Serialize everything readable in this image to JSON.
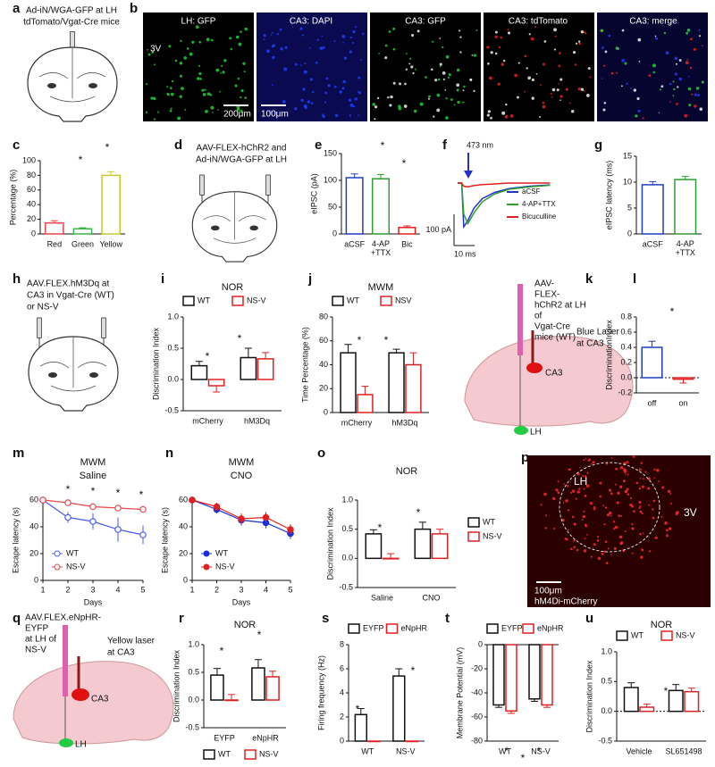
{
  "panels": {
    "a": {
      "letter": "a",
      "lines": [
        "Ad-iN/WGA-GFP at LH",
        "tdTomato/Vgat-Cre mice"
      ]
    },
    "b": {
      "letter": "b",
      "titles": [
        "LH: GFP",
        "CA3: DAPI",
        "CA3: GFP",
        "CA3: tdTomato",
        "CA3: merge"
      ],
      "marks": [
        "3V",
        "200μm",
        "100μm"
      ]
    },
    "d": {
      "letter": "d",
      "lines": [
        "AAV-FLEX-hChR2 and",
        "Ad-iN/WGA-GFP at LH"
      ]
    },
    "h": {
      "letter": "h",
      "lines": [
        "AAV.FLEX.hM3Dq at",
        "CA3 in Vgat-Cre (WT)",
        "or NS-V"
      ]
    },
    "k": {
      "letter": "k",
      "lines": [
        "AAV-",
        "FLEX-",
        "hChR2 at LH",
        "of",
        "Vgat-Cre",
        "mice (WT)"
      ],
      "laser": [
        "Blue Laser",
        "at CA3"
      ],
      "regions": [
        "CA3",
        "LH"
      ]
    },
    "p": {
      "letter": "p",
      "marks": [
        "LH",
        "3V",
        "100μm",
        "hM4Di-mCherry"
      ]
    },
    "q": {
      "letter": "q",
      "lines": [
        "AAV.FLEX.eNpHR-",
        "EYFP",
        "at LH of",
        "NS-V"
      ],
      "laser": [
        "Yellow laser",
        "at CA3"
      ],
      "regions": [
        "CA3",
        "LH"
      ]
    }
  },
  "chart_data": [
    {
      "type": "bar",
      "panel": "c",
      "ylabel": "Percentage (%)",
      "categories": [
        "Red",
        "Green",
        "Yellow"
      ],
      "ylim": [
        0,
        100
      ],
      "yticks": [
        0,
        20,
        40,
        60,
        80,
        100
      ],
      "series": [
        {
          "values": [
            15,
            7,
            80
          ],
          "errors": [
            3,
            1.5,
            5
          ],
          "colors": [
            "#e8474b",
            "#3cb44b",
            "#c8c832"
          ]
        }
      ],
      "annotations": [
        "*",
        "*"
      ]
    },
    {
      "type": "bar",
      "panel": "e",
      "ylabel": "eIPSC (pA)",
      "categories": [
        "aCSF",
        "4-AP\n+TTX",
        "Bic"
      ],
      "ylim": [
        0,
        150
      ],
      "yticks": [
        0,
        50,
        100,
        150
      ],
      "series": [
        {
          "values": [
            105,
            103,
            12
          ],
          "errors": [
            7,
            8,
            3
          ],
          "colors": [
            "#1f3fbf",
            "#2e9e2e",
            "#e02020"
          ]
        }
      ],
      "annotations": [
        "*",
        "*"
      ]
    },
    {
      "type": "trace",
      "panel": "f",
      "annotations": [
        "473 nm"
      ],
      "scale_labels": [
        "100 pA",
        "10 ms"
      ],
      "x": [
        0,
        2,
        3,
        5,
        8,
        12,
        18,
        25,
        35,
        45
      ],
      "series": [
        {
          "name": "aCSF",
          "color": "#2233cc",
          "values": [
            0,
            0,
            -140,
            -120,
            -80,
            -50,
            -30,
            -18,
            -10,
            -6
          ]
        },
        {
          "name": "4-AP+TTX",
          "color": "#2e9e2e",
          "values": [
            0,
            0,
            -100,
            -130,
            -95,
            -60,
            -35,
            -20,
            -12,
            -7
          ]
        },
        {
          "name": "Bicuculline",
          "color": "#e02020",
          "values": [
            0,
            0,
            -10,
            -12,
            -8,
            -5,
            -3,
            0,
            0,
            0
          ]
        }
      ]
    },
    {
      "type": "bar",
      "panel": "g",
      "ylabel": "eIPSC latency (ms)",
      "categories": [
        "aCSF",
        "4-AP\n+TTX"
      ],
      "ylim": [
        0,
        15
      ],
      "yticks": [
        0,
        5,
        10,
        15
      ],
      "series": [
        {
          "values": [
            9.5,
            10.5
          ],
          "errors": [
            0.6,
            0.6
          ],
          "colors": [
            "#1f3fbf",
            "#2e9e2e"
          ]
        }
      ]
    },
    {
      "type": "bar",
      "panel": "i",
      "title": "NOR",
      "ylabel": "Discrimination Index",
      "categories": [
        "mCherry",
        "hM3Dq"
      ],
      "ylim": [
        -0.5,
        1.0
      ],
      "yticks": [
        -0.5,
        {
          "value": 0,
          "label": "0.0"
        },
        0.5,
        {
          "value": 1,
          "label": "1.0"
        }
      ],
      "legend": "top",
      "series": [
        {
          "name": "WT",
          "color": "#111111",
          "values": [
            0.22,
            0.35
          ],
          "errors": [
            0.07,
            0.15
          ]
        },
        {
          "name": "NS-V",
          "color": "#e02020",
          "values": [
            -0.1,
            0.33
          ],
          "errors": [
            0.1,
            0.1
          ]
        }
      ],
      "annotations": [
        "*",
        "*"
      ]
    },
    {
      "type": "bar",
      "panel": "j",
      "title": "MWM",
      "ylabel": "Time Percentage (%)",
      "categories": [
        "mCherry",
        "hM3Dq"
      ],
      "ylim": [
        0,
        80
      ],
      "yticks": [
        0,
        20,
        40,
        60,
        80
      ],
      "legend": "top",
      "series": [
        {
          "name": "WT",
          "color": "#111111",
          "values": [
            50,
            50
          ],
          "errors": [
            7,
            3
          ]
        },
        {
          "name": "NSV",
          "color": "#e02020",
          "values": [
            15,
            40
          ],
          "errors": [
            7,
            10
          ]
        }
      ],
      "annotations": [
        "*",
        "*"
      ]
    },
    {
      "type": "bar",
      "panel": "l",
      "ylabel": "DiscriminationIndex",
      "categories": [
        "off",
        "on"
      ],
      "ylim": [
        -0.2,
        0.8
      ],
      "yticks": [
        -0.2,
        {
          "value": 0,
          "label": "0.0"
        },
        0.2,
        0.4,
        0.6,
        0.8
      ],
      "zero_line": true,
      "series": [
        {
          "values": [
            0.4,
            -0.02
          ],
          "errors": [
            0.08,
            0.05
          ],
          "colors": [
            "#1f3fbf",
            "#e02020"
          ]
        }
      ],
      "annotations": [
        "*"
      ]
    },
    {
      "type": "line",
      "panel": "m",
      "title": "MWM",
      "subtitle": "Saline",
      "xlabel": "Days",
      "ylabel": "Escape latency (s)",
      "x": [
        1,
        2,
        3,
        4,
        5
      ],
      "xlim": [
        1,
        5
      ],
      "xticks": [
        1,
        2,
        3,
        4,
        5
      ],
      "ylim": [
        0,
        60
      ],
      "yticks": [
        0,
        20,
        40,
        60
      ],
      "marker": "open",
      "legend": "lower left",
      "series": [
        {
          "name": "WT",
          "color": "#4a5cf0",
          "values": [
            60,
            47,
            44,
            38,
            34
          ],
          "errors": [
            1,
            4,
            6,
            9,
            7
          ]
        },
        {
          "name": "NS-V",
          "color": "#e8474b",
          "values": [
            60,
            58,
            55,
            54,
            53
          ],
          "errors": [
            1,
            2,
            2,
            2,
            2
          ]
        }
      ],
      "annotations": [
        "*",
        "*",
        "*",
        "*"
      ]
    },
    {
      "type": "line",
      "panel": "n",
      "title": "MWM",
      "subtitle": "CNO",
      "xlabel": "Days",
      "ylabel": "Escape latency (s)",
      "x": [
        1,
        2,
        3,
        4,
        5
      ],
      "xlim": [
        1,
        5
      ],
      "xticks": [
        1,
        2,
        3,
        4,
        5
      ],
      "ylim": [
        0,
        60
      ],
      "yticks": [
        0,
        20,
        40,
        60
      ],
      "marker": "filled",
      "legend": "lower left",
      "series": [
        {
          "name": "WT",
          "color": "#1a2ee0",
          "values": [
            60,
            53,
            45,
            43,
            35
          ],
          "errors": [
            1,
            3,
            4,
            4,
            4
          ]
        },
        {
          "name": "NS-V",
          "color": "#e02020",
          "values": [
            60,
            55,
            46,
            47,
            38
          ],
          "errors": [
            1,
            3,
            4,
            4,
            4
          ]
        }
      ]
    },
    {
      "type": "bar",
      "panel": "o",
      "title": "NOR",
      "ylabel": "Discrimination Index",
      "categories": [
        "Saline",
        "CNO"
      ],
      "ylim": [
        -0.5,
        1.0
      ],
      "yticks": [
        -0.5,
        {
          "value": 0,
          "label": "0.0"
        },
        0.5,
        {
          "value": 1,
          "label": "1.0"
        }
      ],
      "legend": "right",
      "series": [
        {
          "name": "WT",
          "color": "#111111",
          "values": [
            0.42,
            0.5
          ],
          "errors": [
            0.07,
            0.12
          ]
        },
        {
          "name": "NS-V",
          "color": "#e02020",
          "values": [
            0.0,
            0.42
          ],
          "errors": [
            0.08,
            0.08
          ]
        }
      ],
      "annotations": [
        "*",
        "*"
      ]
    },
    {
      "type": "bar",
      "panel": "r",
      "title": "NOR",
      "ylabel": "Discrimination Index",
      "categories": [
        "EYFP",
        "eNpHR"
      ],
      "ylim": [
        -0.5,
        1.0
      ],
      "yticks": [
        -0.5,
        {
          "value": 0,
          "label": "0.0"
        },
        0.5,
        {
          "value": 1,
          "label": "1.0"
        }
      ],
      "legend": "bottom",
      "series": [
        {
          "name": "WT",
          "color": "#111111",
          "values": [
            0.45,
            0.58
          ],
          "errors": [
            0.12,
            0.15
          ]
        },
        {
          "name": "NS-V",
          "color": "#e02020",
          "values": [
            0.0,
            0.42
          ],
          "errors": [
            0.1,
            0.1
          ]
        }
      ],
      "annotations": [
        "*",
        "*"
      ]
    },
    {
      "type": "bar",
      "panel": "s",
      "ylabel": "Firing frequency (Hz)",
      "categories": [
        "WT",
        "NS-V"
      ],
      "ylim": [
        0,
        8
      ],
      "yticks": [
        0,
        2,
        4,
        6,
        8
      ],
      "legend": "top",
      "series": [
        {
          "name": "EYFP",
          "color": "#111111",
          "values": [
            2.2,
            5.4
          ],
          "errors": [
            0.5,
            0.6
          ]
        },
        {
          "name": "eNpHR",
          "color": "#e02020",
          "values": [
            0,
            0
          ],
          "errors": [
            0,
            0
          ]
        }
      ],
      "annotations": [
        "*",
        "*",
        "*"
      ]
    },
    {
      "type": "bar",
      "panel": "t",
      "ylabel": "Membrane Potential (mV)",
      "categories": [
        "WT",
        "NS-V"
      ],
      "ylim": [
        -80,
        0
      ],
      "yticks": [
        0,
        -20,
        -40,
        -60,
        -80
      ],
      "legend": "top",
      "series": [
        {
          "name": "EYFP",
          "color": "#111111",
          "values": [
            -50,
            -45
          ],
          "errors": [
            2,
            2
          ]
        },
        {
          "name": "eNpHR",
          "color": "#e02020",
          "values": [
            -55,
            -50
          ],
          "errors": [
            2,
            2
          ]
        }
      ],
      "annotations": [
        "*",
        "*",
        "*"
      ]
    },
    {
      "type": "bar",
      "panel": "u",
      "title": "NOR",
      "ylabel": "Discrimination Index",
      "categories": [
        "Vehicle",
        "SL651498"
      ],
      "ylim": [
        -0.5,
        1.0
      ],
      "yticks": [
        -0.5,
        {
          "value": 0,
          "label": "0.0"
        },
        0.5,
        {
          "value": 1,
          "label": "1.0"
        }
      ],
      "legend": "top",
      "zero_line": true,
      "series": [
        {
          "name": "WT",
          "color": "#111111",
          "values": [
            0.4,
            0.35
          ],
          "errors": [
            0.08,
            0.1
          ]
        },
        {
          "name": "NS-V",
          "color": "#e02020",
          "values": [
            0.07,
            0.33
          ],
          "errors": [
            0.05,
            0.06
          ]
        }
      ],
      "annotations": [
        "*",
        "*"
      ]
    }
  ]
}
